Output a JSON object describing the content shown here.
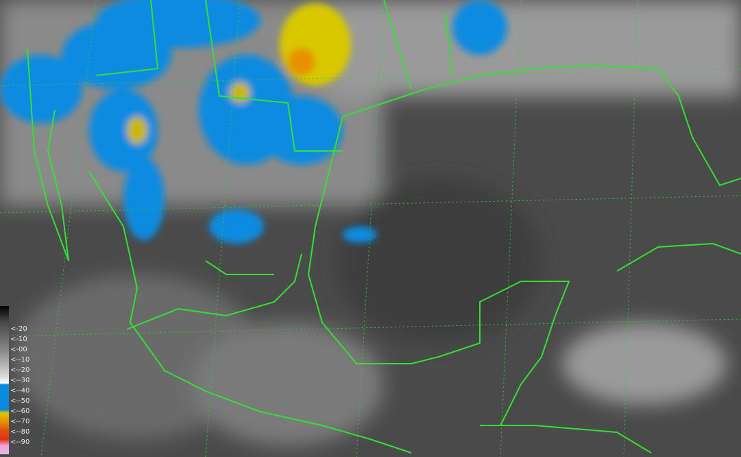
{
  "legend": {
    "labels": [
      "<-20",
      "<-10",
      "<-00",
      "<--10",
      "<--20",
      "<--30",
      "<--40",
      "<--50",
      "<--60",
      "<--70",
      "<--80",
      "<--90"
    ],
    "colors": {
      "cold_blue": "#0a8be0",
      "yellow": "#d8c800",
      "orange": "#e89000",
      "red": "#e03010",
      "pink": "#f0a0e0"
    }
  },
  "colors": {
    "borders": "#33e033",
    "grid": "#33cc33",
    "background": "#4a4a4a"
  }
}
